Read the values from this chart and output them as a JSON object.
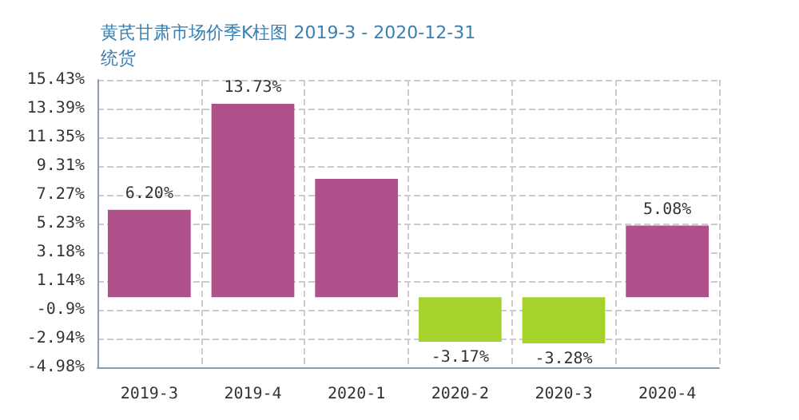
{
  "chart_data": {
    "type": "bar",
    "title": "黄芪甘肃市场价季K柱图 2019-3 - 2020-12-31",
    "subtitle": "统货",
    "categories": [
      "2019-3",
      "2019-4",
      "2020-1",
      "2020-2",
      "2020-3",
      "2020-4"
    ],
    "values": [
      6.2,
      13.73,
      8.4,
      -3.17,
      -3.28,
      5.08
    ],
    "colors": [
      "#b0508a",
      "#b0508a",
      "#b0508a",
      "#a6d22c",
      "#a6d22c",
      "#b0508a"
    ],
    "value_labels": [
      "6.20%",
      "13.73%",
      null,
      "-3.17%",
      "-3.28%",
      "5.08%"
    ],
    "ylim": [
      -4.98,
      15.43
    ],
    "yticks": [
      {
        "value": -4.98,
        "label": "-4.98%"
      },
      {
        "value": -2.94,
        "label": "-2.94%"
      },
      {
        "value": -0.9,
        "label": "-0.9%"
      },
      {
        "value": 1.14,
        "label": "1.14%"
      },
      {
        "value": 3.18,
        "label": "3.18%"
      },
      {
        "value": 5.23,
        "label": "5.23%"
      },
      {
        "value": 7.27,
        "label": "7.27%"
      },
      {
        "value": 9.31,
        "label": "9.31%"
      },
      {
        "value": 11.35,
        "label": "11.35%"
      },
      {
        "value": 13.39,
        "label": "13.39%"
      },
      {
        "value": 15.43,
        "label": "15.43%"
      }
    ],
    "grid": true
  }
}
